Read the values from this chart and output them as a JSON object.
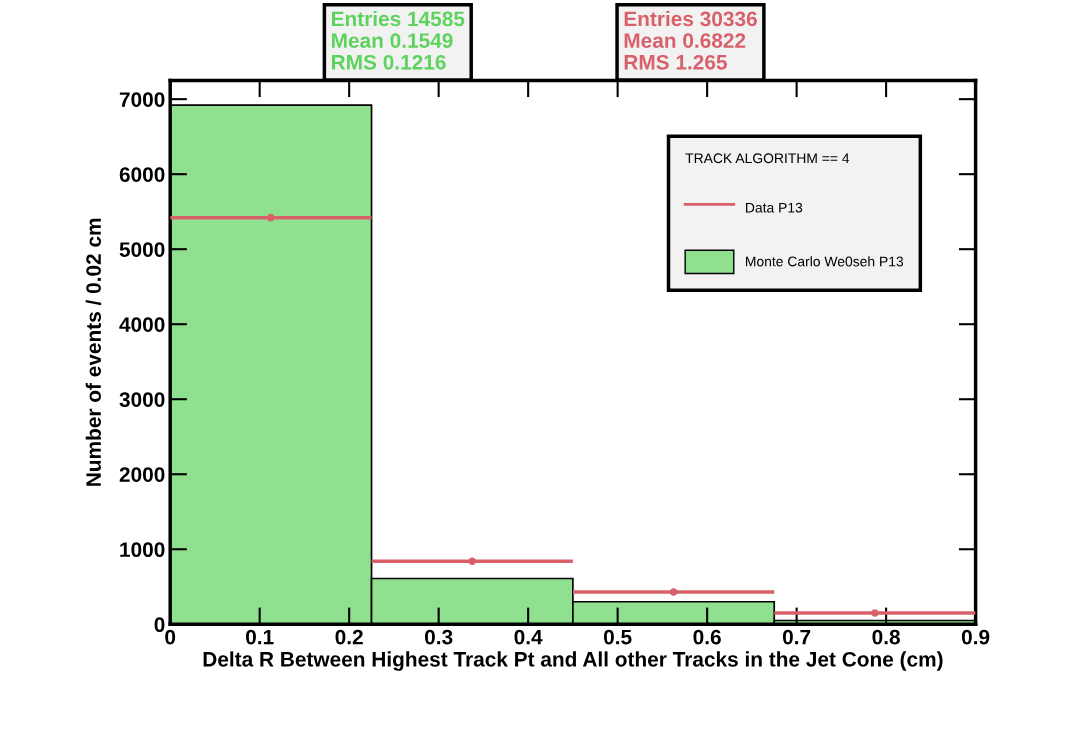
{
  "chart_data": {
    "type": "histogram",
    "xlabel": "Delta R Between Highest Track Pt and All other Tracks in the Jet Cone (cm)",
    "ylabel": "Number of events / 0.02 cm",
    "bins": [
      0,
      0.225,
      0.45,
      0.675,
      0.9
    ],
    "series": [
      {
        "name": "Monte Carlo We0seh P13",
        "color": "#8fe08f",
        "values": [
          6920,
          610,
          300,
          50
        ]
      },
      {
        "name": "Data P13",
        "type": "scatter",
        "color": "#d9606a",
        "x": [
          0.1125,
          0.3375,
          0.5625,
          0.7875
        ],
        "values": [
          5420,
          840,
          430,
          150
        ],
        "xerrors": [
          0.1125,
          0.1125,
          0.1125,
          0.1125
        ]
      }
    ],
    "xlim": [
      0,
      0.9
    ],
    "xticks": [
      0,
      0.1,
      0.2,
      0.3,
      0.4,
      0.5,
      0.6,
      0.7,
      0.8,
      0.9
    ],
    "ylim": [
      0,
      7250
    ],
    "yticks": [
      0,
      1000,
      2000,
      3000,
      4000,
      5000,
      6000,
      7000
    ],
    "legend": "top right",
    "legend_title": "TRACK ALGORITHM == 4",
    "marker": "circle",
    "annotations": [
      "Entries 14585",
      "Mean 0.1549",
      "RMS 0.1216",
      "Entries 30336",
      "Mean 0.6822",
      "RMS 1.265"
    ]
  }
}
